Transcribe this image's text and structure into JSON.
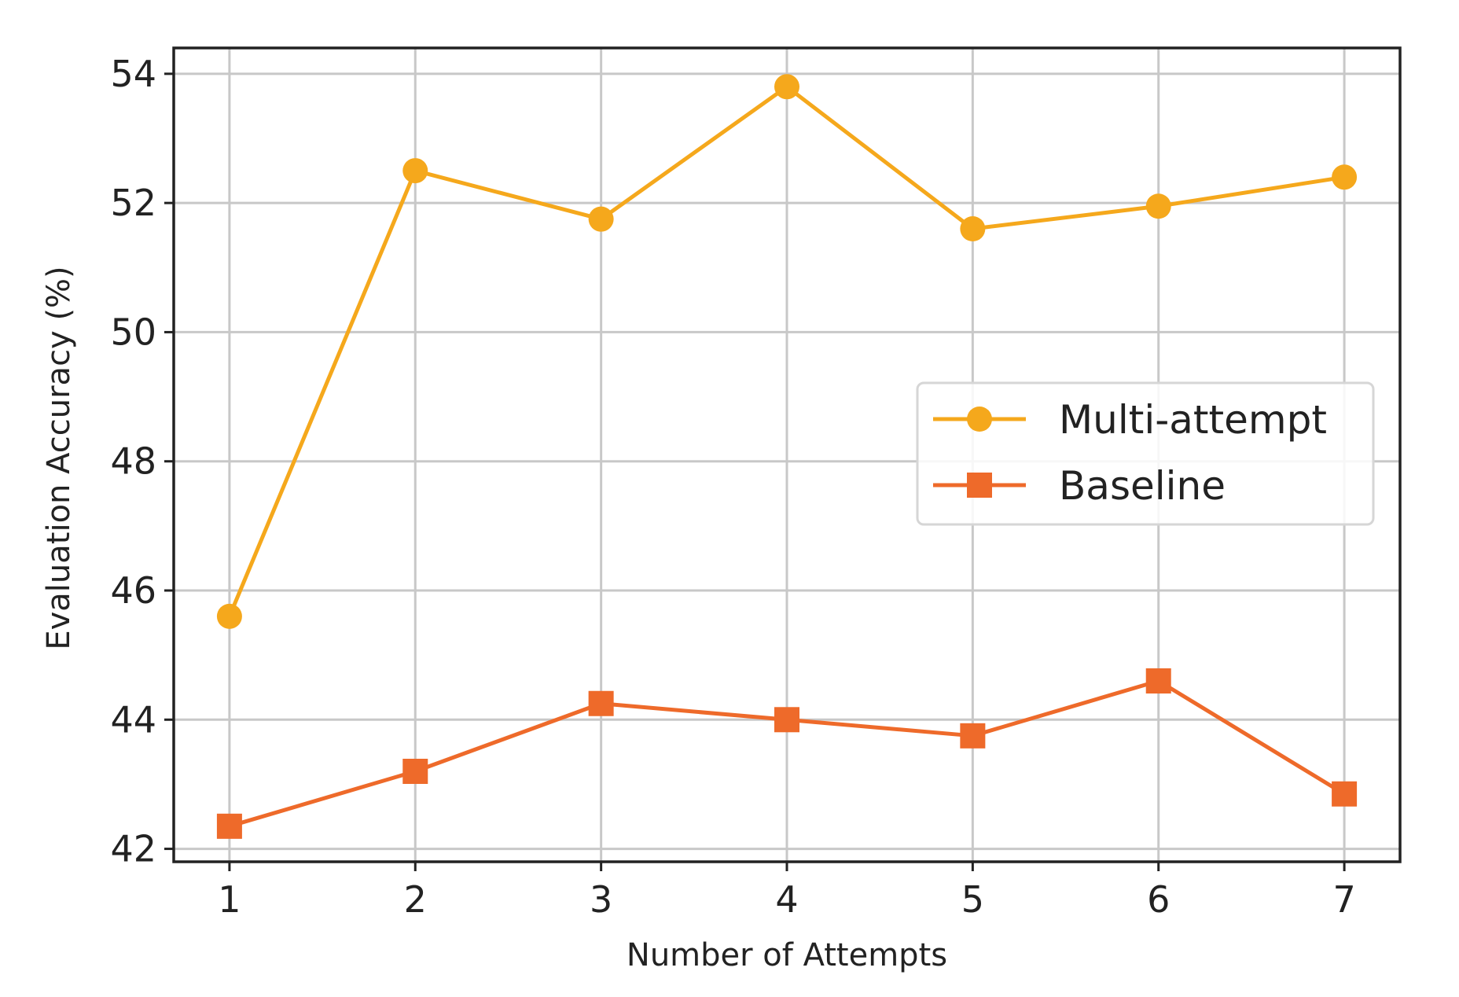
{
  "chart_data": {
    "type": "line",
    "title": "",
    "xlabel": "Number of Attempts",
    "ylabel": "Evaluation Accuracy (%)",
    "x": [
      1,
      2,
      3,
      4,
      5,
      6,
      7
    ],
    "xlim": [
      0.7,
      7.3
    ],
    "ylim": [
      41.8,
      54.4
    ],
    "xticks": [
      1,
      2,
      3,
      4,
      5,
      6,
      7
    ],
    "yticks": [
      42,
      44,
      46,
      48,
      50,
      52,
      54
    ],
    "grid": true,
    "legend_position": "center-right",
    "series": [
      {
        "name": "Multi-attempt",
        "color": "#F5A81C",
        "marker": "circle",
        "values": [
          45.6,
          52.5,
          51.75,
          53.8,
          51.6,
          51.95,
          52.4
        ]
      },
      {
        "name": "Baseline",
        "color": "#EE6A2A",
        "marker": "square",
        "values": [
          42.35,
          43.2,
          44.25,
          44.0,
          43.75,
          44.6,
          42.85
        ]
      }
    ]
  }
}
